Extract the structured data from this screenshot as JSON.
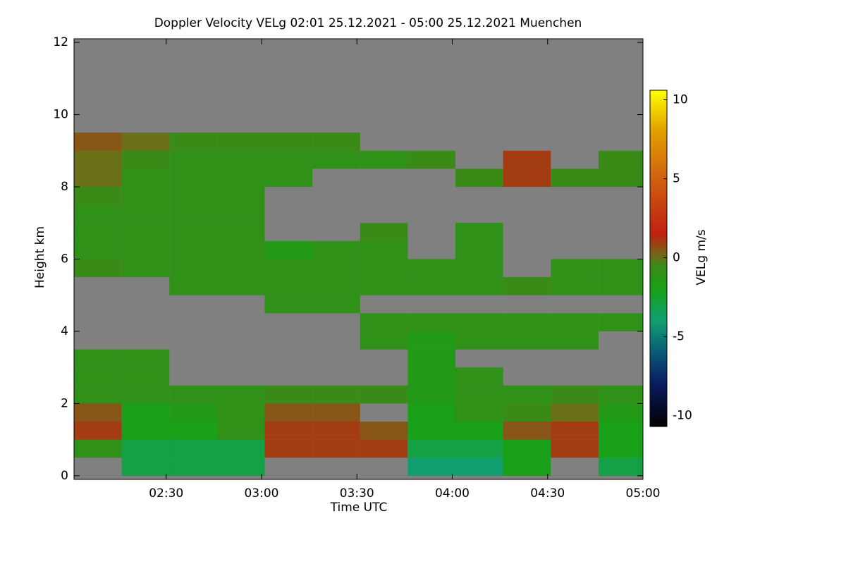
{
  "chart_data": {
    "type": "heatmap",
    "title": "Doppler Velocity VELg   02:01 25.12.2021 - 05:00 25.12.2021 Muenchen",
    "x_label": "Time UTC",
    "y_label": "Height km",
    "colorbar_label": "VELg m/s",
    "background_color": "#808080",
    "xlim": [
      121,
      300
    ],
    "xticks": [
      {
        "value": 150,
        "label": "02:30"
      },
      {
        "value": 180,
        "label": "03:00"
      },
      {
        "value": 210,
        "label": "03:30"
      },
      {
        "value": 240,
        "label": "04:00"
      },
      {
        "value": 270,
        "label": "04:30"
      },
      {
        "value": 300,
        "label": "05:00"
      }
    ],
    "ylim": [
      -0.1,
      12.1
    ],
    "yticks": [
      0,
      2,
      4,
      6,
      8,
      10,
      12
    ],
    "zlim": [
      -10.7,
      10.6
    ],
    "zticks": [
      -10,
      -5,
      0,
      5,
      10
    ],
    "colorscale": [
      [
        -10.7,
        "#000000"
      ],
      [
        -8,
        "#0a1a60"
      ],
      [
        -6,
        "#0a5a78"
      ],
      [
        -4,
        "#10a070"
      ],
      [
        -2,
        "#18a018"
      ],
      [
        -0.5,
        "#3a8a18"
      ],
      [
        0,
        "#6a7018"
      ],
      [
        1.5,
        "#c02010"
      ],
      [
        5,
        "#d06010"
      ],
      [
        8,
        "#e0a000"
      ],
      [
        10.6,
        "#ffff00"
      ]
    ],
    "x": [
      128.5,
      143.5,
      158.5,
      173.5,
      188.5,
      203.5,
      218.5,
      233.5,
      248.5,
      263.5,
      278.5,
      293.5
    ],
    "y": [
      0.25,
      0.75,
      1.25,
      1.75,
      2.25,
      2.75,
      3.25,
      3.75,
      4.25,
      4.75,
      5.25,
      5.75,
      6.25,
      6.75,
      7.25,
      7.75,
      8.25,
      8.75,
      9.25,
      9.75,
      10.25,
      10.75,
      11.25,
      11.75
    ],
    "z": [
      [
        null,
        -3,
        -3,
        -3,
        null,
        null,
        null,
        -4,
        -4,
        -2,
        null,
        -3
      ],
      [
        -1,
        -3,
        -3,
        -3,
        1,
        1,
        1,
        -3,
        -3,
        -2,
        1,
        -2
      ],
      [
        1,
        -2,
        -2,
        -1,
        1,
        1,
        0.5,
        -2,
        -2,
        0.5,
        1,
        -2
      ],
      [
        0.5,
        -2,
        -1.5,
        -1,
        0.5,
        0.5,
        null,
        -2,
        -1,
        -0.5,
        0,
        -1.5
      ],
      [
        -1,
        -1,
        -1,
        -1,
        -0.5,
        -0.5,
        -0.5,
        -1.5,
        -1,
        -1,
        -0.5,
        -1
      ],
      [
        -1,
        -1,
        null,
        null,
        null,
        null,
        null,
        -1.5,
        -1,
        null,
        null,
        null
      ],
      [
        -1,
        -1,
        null,
        null,
        null,
        null,
        null,
        -1.5,
        null,
        null,
        null,
        null
      ],
      [
        null,
        null,
        null,
        null,
        null,
        null,
        -1,
        -1.5,
        -1,
        -1,
        -1,
        null
      ],
      [
        null,
        null,
        null,
        null,
        null,
        null,
        -1,
        -1,
        -1,
        -1,
        -1,
        -1
      ],
      [
        null,
        null,
        null,
        null,
        -1,
        -1,
        null,
        null,
        null,
        null,
        null,
        null
      ],
      [
        null,
        null,
        -1,
        -1,
        -1,
        -1,
        -1,
        -1,
        -1,
        -0.5,
        -1,
        -1
      ],
      [
        -0.5,
        -1,
        -1,
        -1,
        -1,
        -1,
        -1,
        -1,
        -1,
        null,
        -1,
        -1
      ],
      [
        -1,
        -1,
        -1,
        -1,
        -1.5,
        -1,
        -1,
        null,
        -1,
        null,
        null,
        null
      ],
      [
        -1,
        -1,
        -1,
        -1,
        null,
        null,
        -0.5,
        null,
        -1,
        null,
        null,
        null
      ],
      [
        -1,
        -1,
        -1,
        -1,
        null,
        null,
        null,
        null,
        null,
        null,
        null,
        null
      ],
      [
        -0.5,
        -1,
        -1,
        -1,
        null,
        null,
        null,
        null,
        null,
        null,
        null,
        null
      ],
      [
        0,
        -1,
        -1,
        -1,
        -1,
        null,
        null,
        null,
        -0.5,
        1,
        -0.5,
        -0.5
      ],
      [
        0,
        -0.5,
        -1,
        -1,
        -1,
        -1,
        -1,
        -0.5,
        null,
        1,
        null,
        -0.5
      ],
      [
        0.5,
        0,
        -0.5,
        -0.5,
        -0.5,
        -0.5,
        null,
        null,
        null,
        null,
        null,
        null
      ],
      [
        null,
        null,
        null,
        null,
        null,
        null,
        null,
        null,
        null,
        null,
        null,
        null
      ],
      [
        null,
        null,
        null,
        null,
        null,
        null,
        null,
        null,
        null,
        null,
        null,
        null
      ],
      [
        null,
        null,
        null,
        null,
        null,
        null,
        null,
        null,
        null,
        null,
        null,
        null
      ],
      [
        null,
        null,
        null,
        null,
        null,
        null,
        null,
        null,
        null,
        null,
        null,
        null
      ],
      [
        null,
        null,
        null,
        null,
        null,
        null,
        null,
        null,
        null,
        null,
        null,
        null
      ]
    ]
  }
}
